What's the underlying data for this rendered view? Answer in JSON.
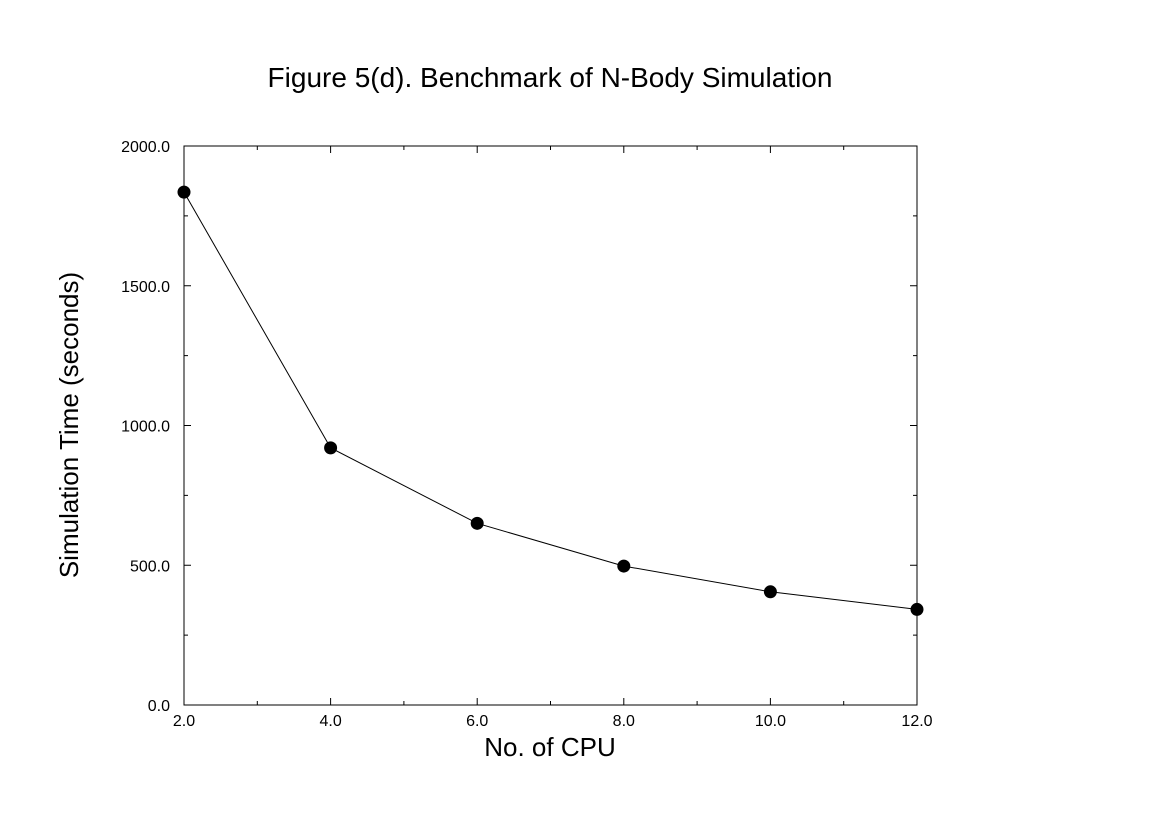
{
  "chart_data": {
    "type": "line",
    "title": "Figure 5(d). Benchmark of N-Body Simulation",
    "xlabel": "No. of CPU",
    "ylabel": "Simulation Time (seconds)",
    "xlim": [
      2.0,
      12.0
    ],
    "ylim": [
      0.0,
      2000.0
    ],
    "x_ticks": [
      2.0,
      4.0,
      6.0,
      8.0,
      10.0,
      12.0
    ],
    "x_tick_labels": [
      "2.0",
      "4.0",
      "6.0",
      "8.0",
      "10.0",
      "12.0"
    ],
    "y_ticks": [
      0.0,
      500.0,
      1000.0,
      1500.0,
      2000.0
    ],
    "y_tick_labels": [
      "0.0",
      "500.0",
      "1000.0",
      "1500.0",
      "2000.0"
    ],
    "grid": false,
    "legend": "none",
    "series": [
      {
        "x": [
          2.0,
          4.0,
          6.0,
          8.0,
          10.0,
          12.0
        ],
        "values": [
          1835,
          920,
          650,
          497,
          405,
          342
        ],
        "color": "#000000",
        "marker": "circle"
      }
    ]
  }
}
